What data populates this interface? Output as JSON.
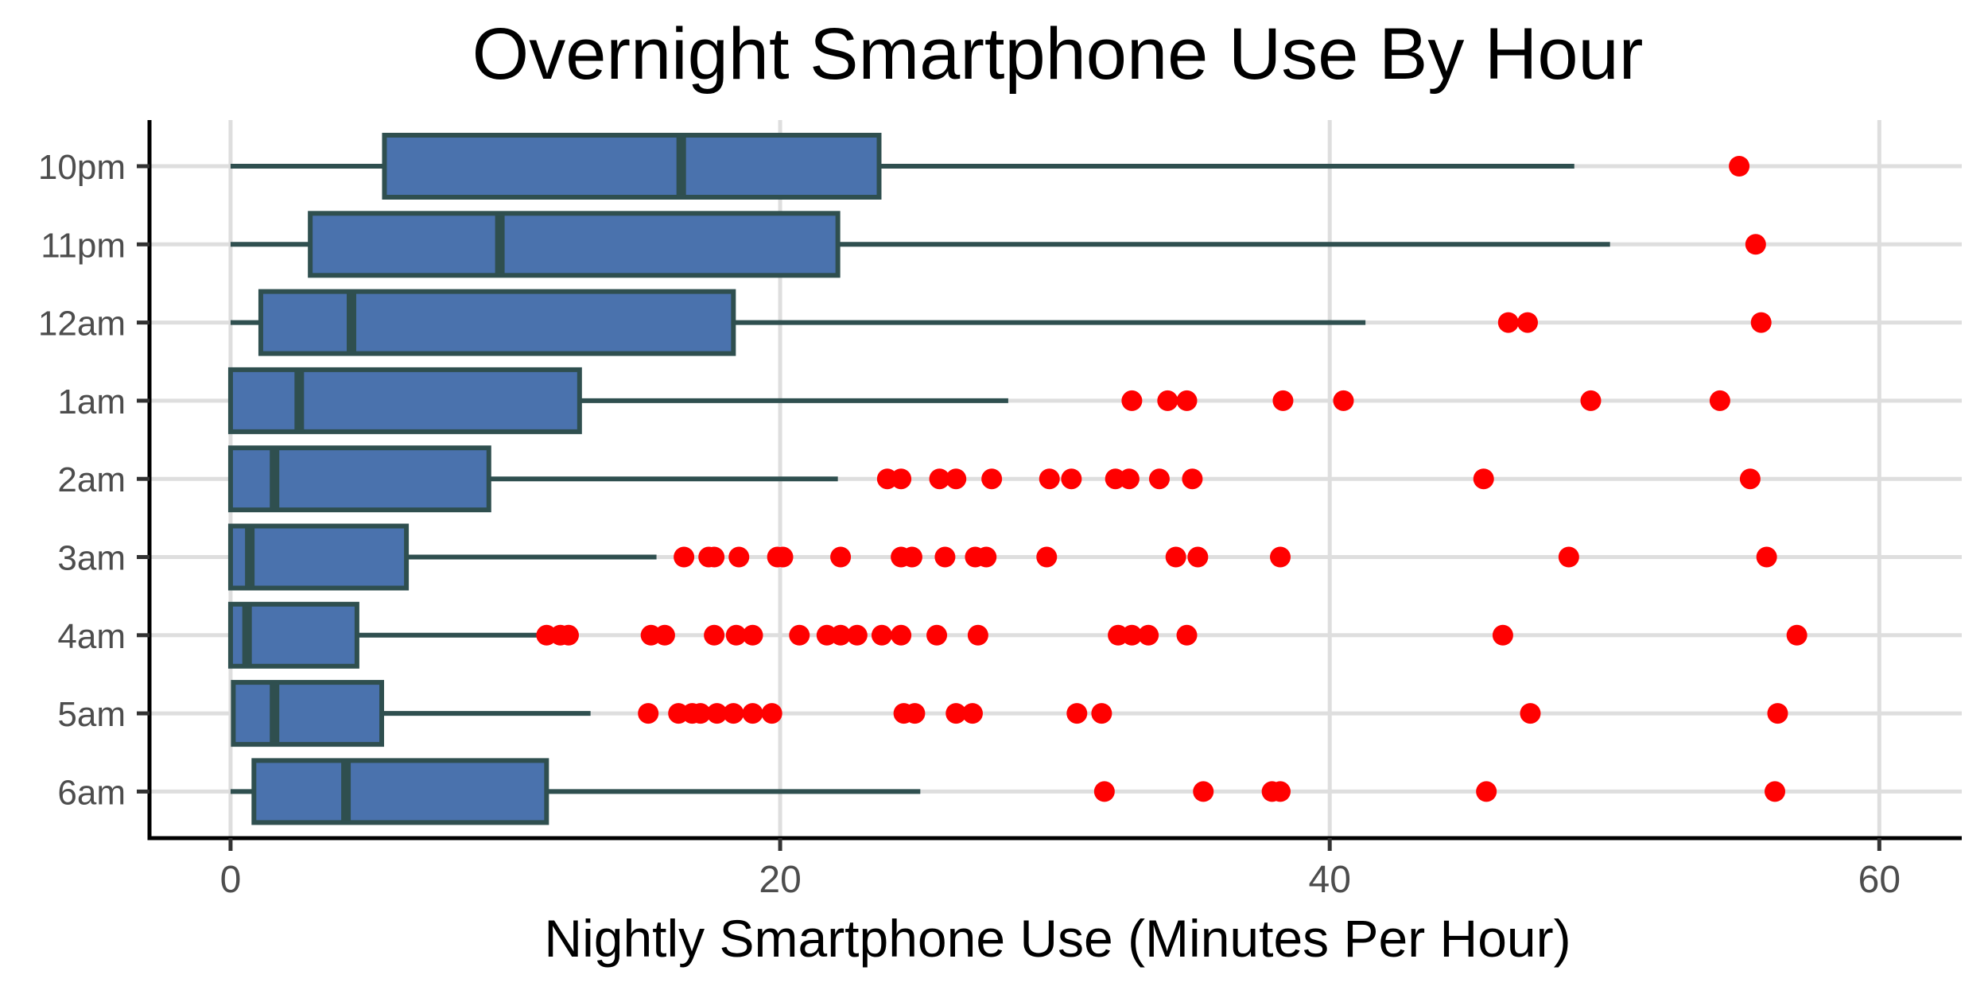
{
  "chart_data": {
    "type": "boxplot",
    "orientation": "horizontal",
    "title": "Overnight Smartphone Use By Hour",
    "xlabel": "Nightly Smartphone Use (Minutes Per Hour)",
    "ylabel": "",
    "xlim": [
      -2.95,
      63.0
    ],
    "x_ticks": [
      0,
      20,
      40,
      60
    ],
    "grid": true,
    "legend": null,
    "colors": {
      "box_fill": "#4A72AD",
      "box_outline": "#2F4F4F",
      "outlier": "#FF0000",
      "gridline": "#DEDEDE",
      "axis": "#000000",
      "tick_label": "#4D4D4D"
    },
    "categories": [
      "10pm",
      "11pm",
      "12am",
      "1am",
      "2am",
      "3am",
      "4am",
      "5am",
      "6am"
    ],
    "boxes": [
      {
        "label": "10pm",
        "whisker_low": 0,
        "q1": 5.6,
        "median": 16.4,
        "q3": 23.6,
        "whisker_high": 48.9,
        "outliers": [
          54.9
        ]
      },
      {
        "label": "11pm",
        "whisker_low": 0,
        "q1": 2.9,
        "median": 9.8,
        "q3": 22.1,
        "whisker_high": 50.2,
        "outliers": [
          55.5
        ]
      },
      {
        "label": "12am",
        "whisker_low": 0,
        "q1": 1.1,
        "median": 4.4,
        "q3": 18.3,
        "whisker_high": 41.3,
        "outliers": [
          46.5,
          47.2,
          55.7
        ]
      },
      {
        "label": "1am",
        "whisker_low": 0,
        "q1": 0,
        "median": 2.5,
        "q3": 12.7,
        "whisker_high": 28.3,
        "outliers": [
          32.8,
          34.1,
          34.8,
          38.3,
          40.5,
          49.5,
          54.2
        ]
      },
      {
        "label": "2am",
        "whisker_low": 0,
        "q1": 0,
        "median": 1.6,
        "q3": 9.4,
        "whisker_high": 22.1,
        "outliers": [
          23.9,
          24.4,
          25.8,
          26.4,
          27.7,
          29.8,
          30.6,
          32.2,
          32.7,
          33.8,
          35.0,
          45.6,
          55.3
        ]
      },
      {
        "label": "3am",
        "whisker_low": 0,
        "q1": 0,
        "median": 0.7,
        "q3": 6.4,
        "whisker_high": 15.5,
        "outliers": [
          16.5,
          17.4,
          17.6,
          18.5,
          19.9,
          20.1,
          22.2,
          24.4,
          24.8,
          26.0,
          27.1,
          27.5,
          29.7,
          34.4,
          35.2,
          38.2,
          48.7,
          55.9
        ]
      },
      {
        "label": "4am",
        "whisker_low": 0,
        "q1": 0,
        "median": 0.6,
        "q3": 4.6,
        "whisker_high": 11.2,
        "outliers": [
          11.5,
          12.0,
          12.3,
          15.3,
          15.8,
          17.6,
          18.4,
          19.0,
          20.7,
          21.7,
          22.2,
          22.8,
          23.7,
          24.4,
          25.7,
          27.2,
          32.3,
          32.8,
          33.4,
          34.8,
          46.3,
          57.0
        ]
      },
      {
        "label": "5am",
        "whisker_low": 0.1,
        "q1": 0.1,
        "median": 1.6,
        "q3": 5.5,
        "whisker_high": 13.1,
        "outliers": [
          15.2,
          16.3,
          16.8,
          17.1,
          17.7,
          18.3,
          19.0,
          19.7,
          24.5,
          24.9,
          26.4,
          27.0,
          30.8,
          31.7,
          47.3,
          56.3
        ]
      },
      {
        "label": "6am",
        "whisker_low": 0,
        "q1": 0.85,
        "median": 4.2,
        "q3": 11.5,
        "whisker_high": 25.1,
        "outliers": [
          31.8,
          35.4,
          37.9,
          38.2,
          45.7,
          56.2
        ]
      }
    ]
  }
}
